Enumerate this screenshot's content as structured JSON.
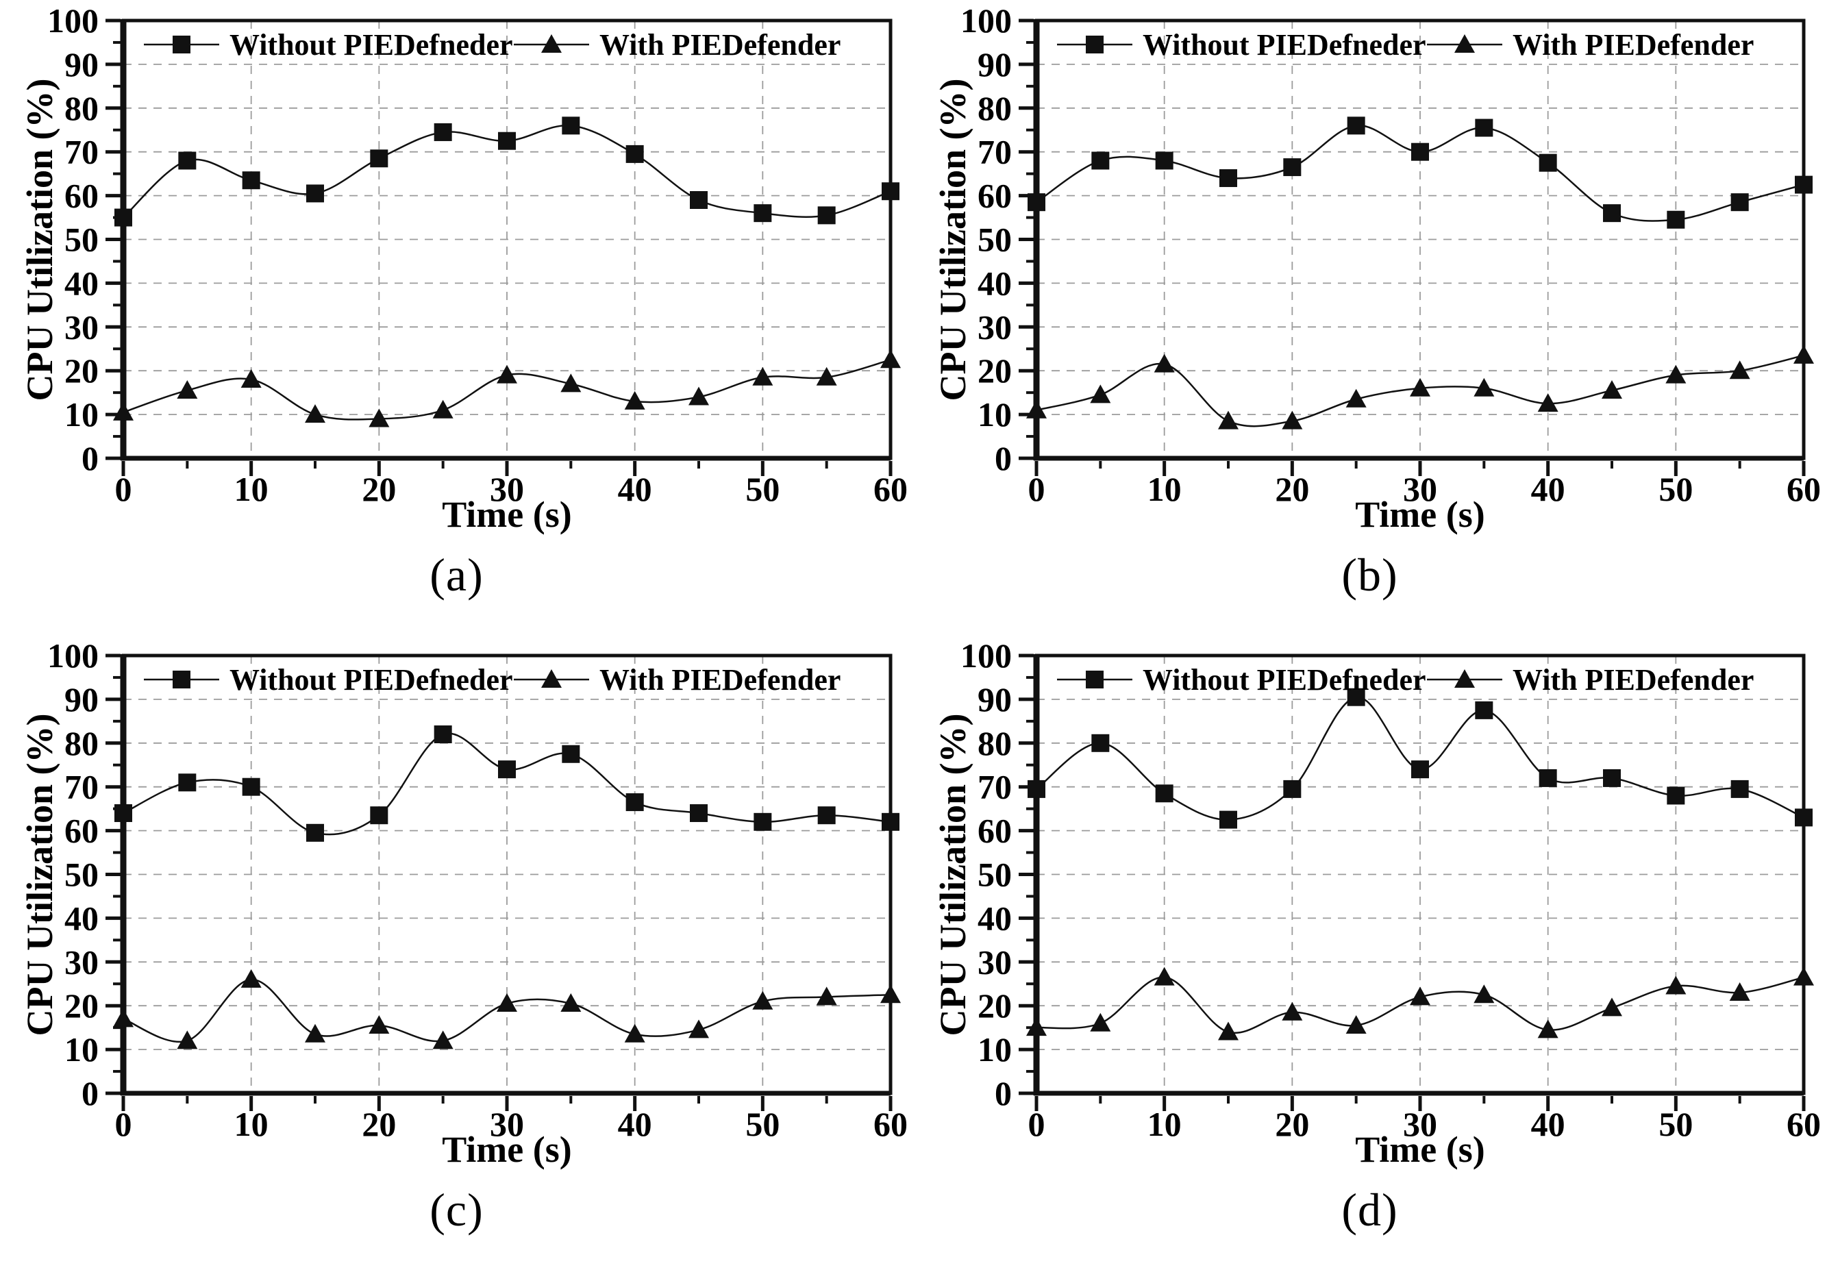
{
  "figure": {
    "background": "#ffffff",
    "line_color": "#111111",
    "grid_color": "#9b9b9b",
    "text_color": "#000000"
  },
  "chart_data": [
    {
      "id": "a",
      "type": "line",
      "caption": "(a)",
      "xlabel": "Time (s)",
      "ylabel": "CPU Utilization (%)",
      "xlim": [
        0,
        60
      ],
      "ylim": [
        0,
        100
      ],
      "xticks": [
        0,
        10,
        20,
        30,
        40,
        50,
        60
      ],
      "yticks": [
        0,
        10,
        20,
        30,
        40,
        50,
        60,
        70,
        80,
        90,
        100
      ],
      "minor_tick_step": 5,
      "grid": "dashed-major",
      "legend_position": "top-inside",
      "x": [
        0,
        5,
        10,
        15,
        20,
        25,
        30,
        35,
        40,
        45,
        50,
        55,
        60
      ],
      "series": [
        {
          "name": "Without PIEDefneder",
          "marker": "square",
          "values": [
            55,
            68,
            63.5,
            60.5,
            68.5,
            74.5,
            72.5,
            76,
            69.5,
            59,
            56,
            55.5,
            61
          ]
        },
        {
          "name": "With PIEDefender",
          "marker": "triangle",
          "values": [
            10.5,
            15.5,
            18,
            10,
            9,
            11,
            19,
            17,
            13,
            14,
            18.5,
            18.5,
            22.5
          ]
        }
      ]
    },
    {
      "id": "b",
      "type": "line",
      "caption": "(b)",
      "xlabel": "Time (s)",
      "ylabel": "CPU Utilization (%)",
      "xlim": [
        0,
        60
      ],
      "ylim": [
        0,
        100
      ],
      "xticks": [
        0,
        10,
        20,
        30,
        40,
        50,
        60
      ],
      "yticks": [
        0,
        10,
        20,
        30,
        40,
        50,
        60,
        70,
        80,
        90,
        100
      ],
      "minor_tick_step": 5,
      "grid": "dashed-major",
      "legend_position": "top-inside",
      "x": [
        0,
        5,
        10,
        15,
        20,
        25,
        30,
        35,
        40,
        45,
        50,
        55,
        60
      ],
      "series": [
        {
          "name": "Without PIEDefneder",
          "marker": "square",
          "values": [
            58.5,
            68,
            68,
            64,
            66.5,
            76,
            70,
            75.5,
            67.5,
            56,
            54.5,
            58.5,
            62.5
          ]
        },
        {
          "name": "With PIEDefender",
          "marker": "triangle",
          "values": [
            11,
            14.5,
            21.5,
            8.5,
            8.5,
            13.5,
            16,
            16,
            12.5,
            15.5,
            19,
            20,
            23.5
          ]
        }
      ]
    },
    {
      "id": "c",
      "type": "line",
      "caption": "(c)",
      "xlabel": "Time (s)",
      "ylabel": "CPU Utilization (%)",
      "xlim": [
        0,
        60
      ],
      "ylim": [
        0,
        100
      ],
      "xticks": [
        0,
        10,
        20,
        30,
        40,
        50,
        60
      ],
      "yticks": [
        0,
        10,
        20,
        30,
        40,
        50,
        60,
        70,
        80,
        90,
        100
      ],
      "minor_tick_step": 5,
      "grid": "dashed-major",
      "legend_position": "top-inside",
      "x": [
        0,
        5,
        10,
        15,
        20,
        25,
        30,
        35,
        40,
        45,
        50,
        55,
        60
      ],
      "series": [
        {
          "name": "Without PIEDefneder",
          "marker": "square",
          "values": [
            64,
            71,
            70,
            59.5,
            63.5,
            82,
            74,
            77.5,
            66.5,
            64,
            62,
            63.5,
            62
          ]
        },
        {
          "name": "With PIEDefender",
          "marker": "triangle",
          "values": [
            17,
            12,
            26,
            13.5,
            15.5,
            12,
            20.5,
            20.5,
            13.5,
            14.5,
            21,
            22,
            22.5
          ]
        }
      ]
    },
    {
      "id": "d",
      "type": "line",
      "caption": "(d)",
      "xlabel": "Time (s)",
      "ylabel": "CPU Utilization (%)",
      "xlim": [
        0,
        60
      ],
      "ylim": [
        0,
        100
      ],
      "xticks": [
        0,
        10,
        20,
        30,
        40,
        50,
        60
      ],
      "yticks": [
        0,
        10,
        20,
        30,
        40,
        50,
        60,
        70,
        80,
        90,
        100
      ],
      "minor_tick_step": 5,
      "grid": "dashed-major",
      "legend_position": "top-inside",
      "x": [
        0,
        5,
        10,
        15,
        20,
        25,
        30,
        35,
        40,
        45,
        50,
        55,
        60
      ],
      "series": [
        {
          "name": "Without PIEDefneder",
          "marker": "square",
          "values": [
            69.5,
            80,
            68.5,
            62.5,
            69.5,
            90.5,
            74,
            87.5,
            72,
            72,
            68,
            69.5,
            63
          ]
        },
        {
          "name": "With PIEDefender",
          "marker": "triangle",
          "values": [
            15,
            16,
            26.5,
            14,
            18.5,
            15.5,
            22,
            22.5,
            14.5,
            19.5,
            24.5,
            23,
            26.5
          ]
        }
      ]
    }
  ]
}
